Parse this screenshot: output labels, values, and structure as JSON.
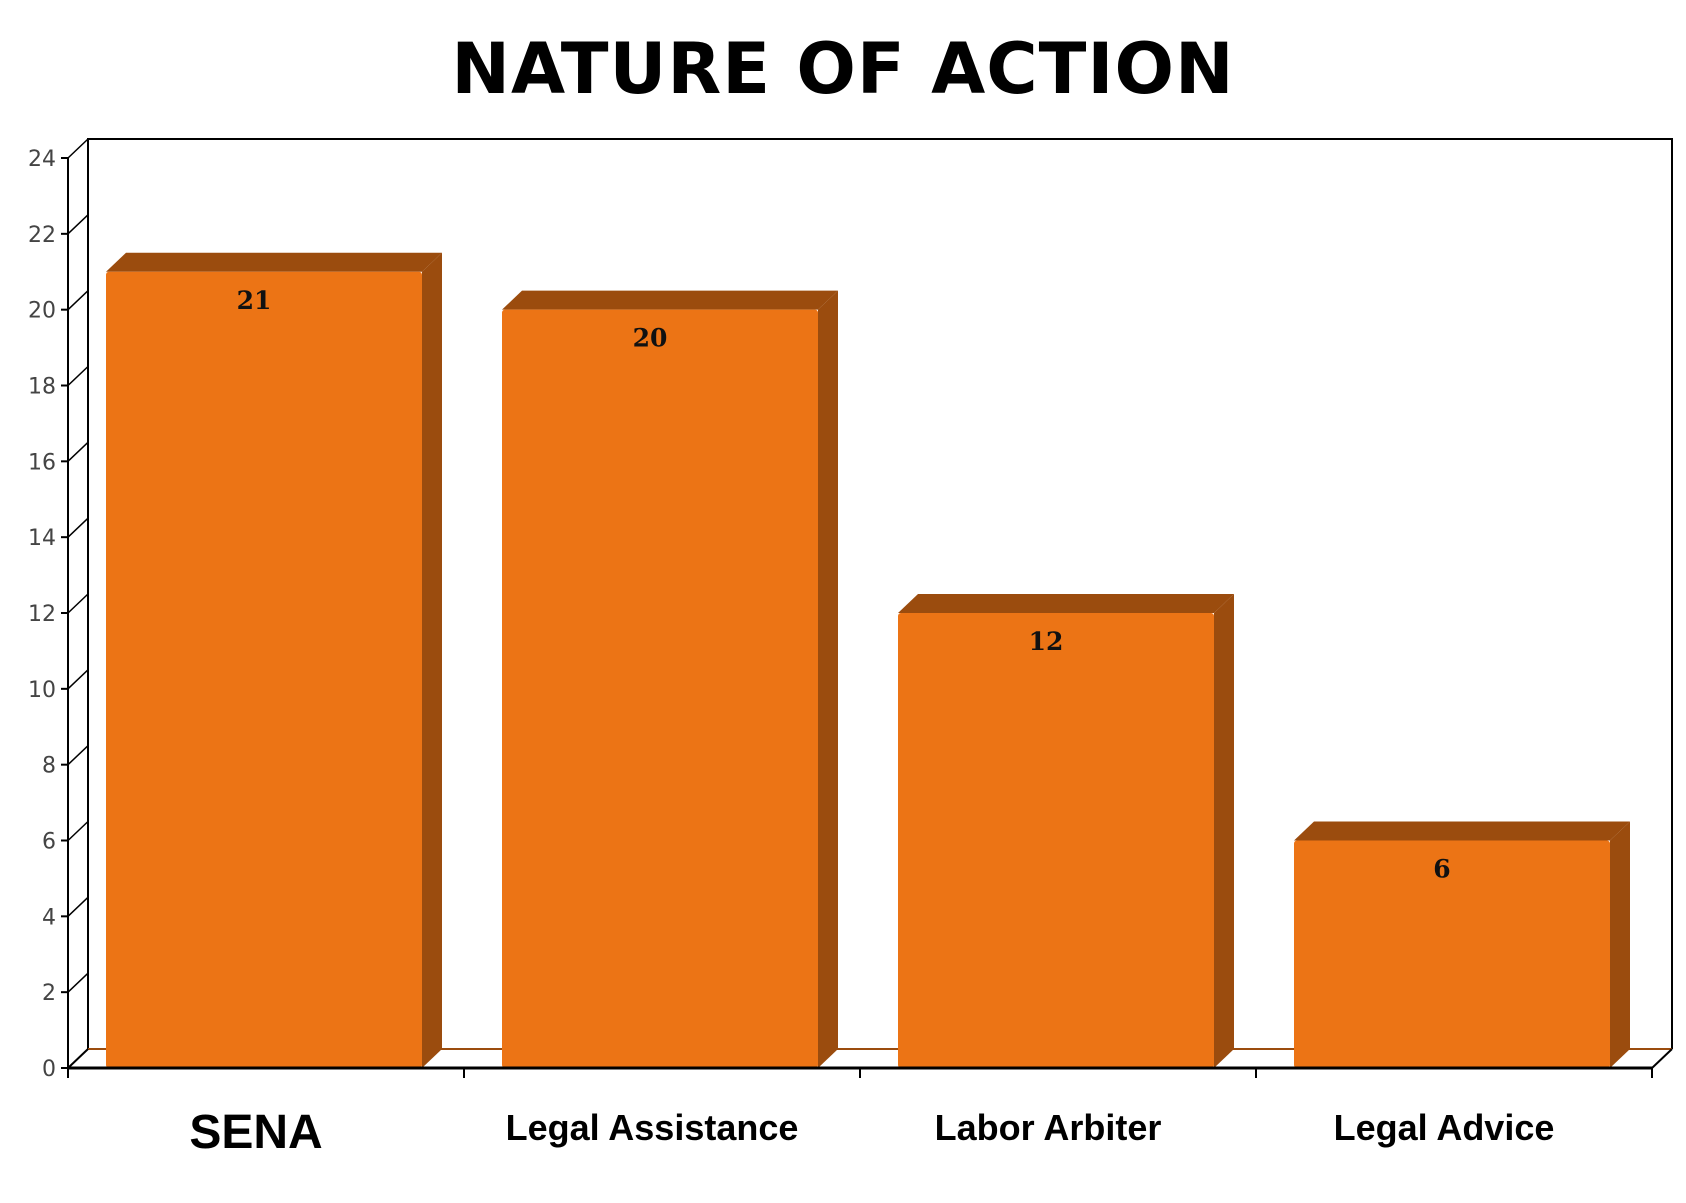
{
  "chart_data": {
    "type": "bar",
    "title": "NATURE OF ACTION",
    "categories": [
      "SENA",
      "Legal Assistance",
      "Labor Arbiter",
      "Legal Advice"
    ],
    "values": [
      21,
      20,
      12,
      6
    ],
    "data_labels": [
      "21",
      "20",
      "12",
      "6"
    ],
    "ylim": [
      0,
      24
    ],
    "yticks": [
      0,
      2,
      4,
      6,
      8,
      10,
      12,
      14,
      16,
      18,
      20,
      22,
      24
    ],
    "xlabel": "",
    "ylabel": "",
    "grid": false,
    "legend": "none",
    "style": "3d",
    "colors": {
      "bar_front": "#EC7415",
      "bar_side": "#9B4C0E",
      "bar_top": "#9B4C0E",
      "axis": "#000000",
      "floor_line": "#9B4C0E"
    }
  }
}
